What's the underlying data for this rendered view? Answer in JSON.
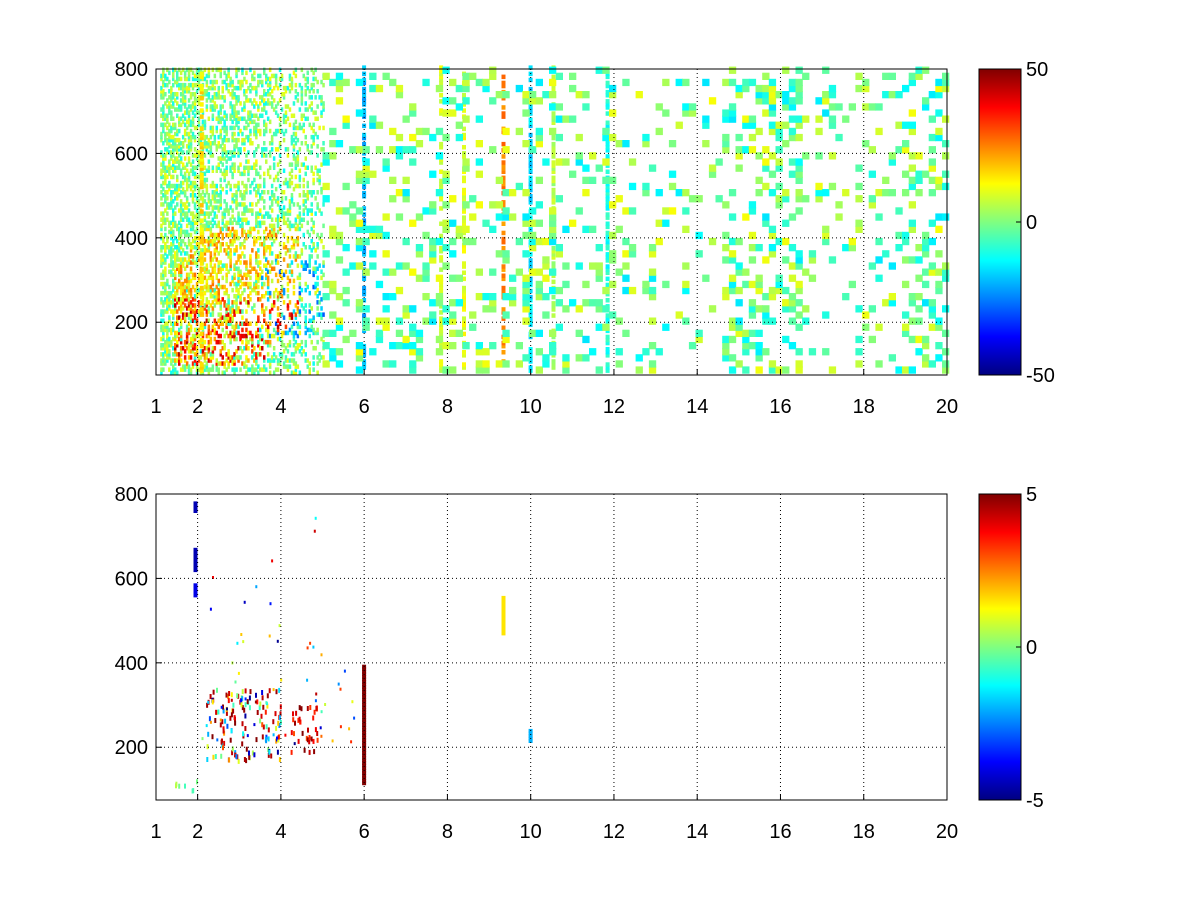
{
  "figure": {
    "background": "#ffffff"
  },
  "chart_data": [
    {
      "type": "heatmap",
      "xlabel": "",
      "ylabel": "",
      "xlim": [
        1,
        20
      ],
      "ylim": [
        75,
        800
      ],
      "x_tick_labels": [
        "1",
        "2",
        "4",
        "6",
        "8",
        "10",
        "12",
        "14",
        "16",
        "18",
        "20"
      ],
      "x_tick_values": [
        1,
        2,
        4,
        6,
        8,
        10,
        12,
        14,
        16,
        18,
        20
      ],
      "y_tick_labels": [
        "200",
        "400",
        "600",
        "800"
      ],
      "y_tick_values": [
        200,
        400,
        600,
        800
      ],
      "grid": true,
      "colormap": "jet",
      "colorbar": {
        "clim": [
          -50,
          50
        ],
        "tick_labels": [
          "50",
          "0",
          "-50"
        ],
        "tick_values": [
          50,
          0,
          -50
        ]
      },
      "patterns": {
        "dense_region": {
          "x": [
            1.1,
            5.0
          ],
          "y": [
            75,
            800
          ]
        },
        "hot_cluster": {
          "x": [
            1.4,
            4.4
          ],
          "y": [
            90,
            420
          ],
          "value_range": [
            5,
            45
          ]
        },
        "cool_cluster": {
          "x": [
            3.4,
            5.0
          ],
          "y": [
            150,
            350
          ],
          "value_range": [
            -30,
            -5
          ]
        },
        "stripe_columns": [
          {
            "x": 2.05,
            "value": 15
          },
          {
            "x": 5.95,
            "value": -20
          },
          {
            "x": 7.8,
            "value": 8
          },
          {
            "x": 8.35,
            "value": 10
          },
          {
            "x": 9.3,
            "value": 25
          },
          {
            "x": 9.95,
            "value": -15
          },
          {
            "x": 10.5,
            "value": 5
          },
          {
            "x": 11.8,
            "value": -10
          }
        ],
        "sparse_band_x": [
          5.0,
          20.0
        ],
        "sparse_value_range": [
          -15,
          12
        ]
      }
    },
    {
      "type": "heatmap",
      "xlabel": "",
      "ylabel": "",
      "xlim": [
        1,
        20
      ],
      "ylim": [
        75,
        800
      ],
      "x_tick_labels": [
        "1",
        "2",
        "4",
        "6",
        "8",
        "10",
        "12",
        "14",
        "16",
        "18",
        "20"
      ],
      "x_tick_values": [
        1,
        2,
        4,
        6,
        8,
        10,
        12,
        14,
        16,
        18,
        20
      ],
      "y_tick_labels": [
        "200",
        "400",
        "600",
        "800"
      ],
      "y_tick_values": [
        200,
        400,
        600,
        800
      ],
      "grid": true,
      "colormap": "jet",
      "colorbar": {
        "clim": [
          -5,
          5
        ],
        "tick_labels": [
          "5",
          "0",
          "-5"
        ],
        "tick_values": [
          5,
          0,
          -5
        ]
      },
      "features": [
        {
          "kind": "cluster",
          "x": [
            2.2,
            4.0
          ],
          "y": [
            160,
            330
          ],
          "value_range": [
            -5,
            5
          ]
        },
        {
          "kind": "cluster",
          "x": [
            4.2,
            4.9
          ],
          "y": [
            180,
            290
          ],
          "value_range": [
            3,
            5
          ]
        },
        {
          "kind": "bar",
          "x": 5.95,
          "y": [
            110,
            390
          ],
          "value": 5
        },
        {
          "kind": "bar",
          "x": 9.3,
          "y": [
            465,
            550
          ],
          "value": 1.5
        },
        {
          "kind": "bar",
          "x": 9.95,
          "y": [
            210,
            235
          ],
          "value": -2
        },
        {
          "kind": "bar",
          "x": 1.9,
          "y": [
            615,
            665
          ],
          "value": -4.5
        },
        {
          "kind": "bar",
          "x": 1.9,
          "y": [
            555,
            580
          ],
          "value": -4
        },
        {
          "kind": "bar",
          "x": 1.9,
          "y": [
            755,
            775
          ],
          "value": -4.5
        },
        {
          "kind": "cluster",
          "x": [
            1.4,
            2.0
          ],
          "y": [
            90,
            115
          ],
          "value_range": [
            -1,
            1
          ]
        },
        {
          "kind": "scatter",
          "x": [
            2.0,
            5.8
          ],
          "y": [
            200,
            800
          ],
          "value_range": [
            -5,
            5
          ]
        }
      ]
    }
  ]
}
